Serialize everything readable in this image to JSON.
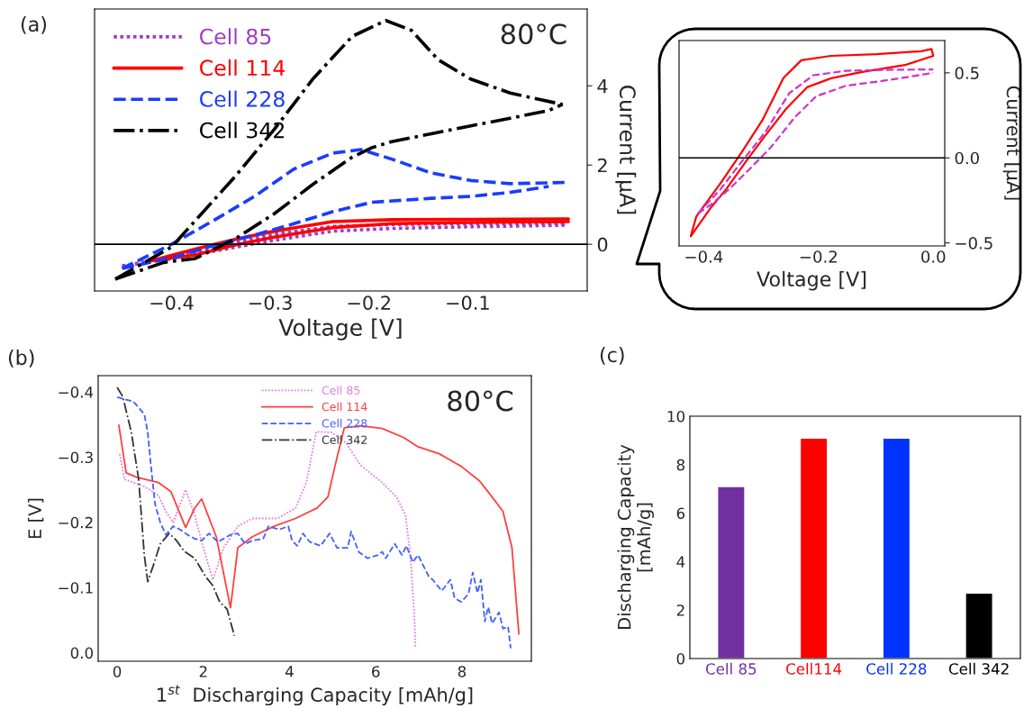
{
  "chart_data": [
    {
      "type": "line",
      "xlabel": "Voltage [V]",
      "ylabel": "Current [μA]",
      "annotations": [
        "(a)",
        "80°C"
      ],
      "xlim": [
        -0.478,
        0.021
      ],
      "xticks": [
        {
          "value": -0.4,
          "label": "−0.4"
        },
        {
          "value": -0.3,
          "label": "−0.3"
        },
        {
          "value": -0.2,
          "label": "−0.2"
        },
        {
          "value": -0.1,
          "label": "−0.1"
        }
      ],
      "ylim": [
        -1.18,
        5.94
      ],
      "yticks": [
        0,
        2,
        4
      ],
      "legend": "top left",
      "grid": false,
      "ref_lines": [
        {
          "axis": "y",
          "value": 0,
          "color": "#000000"
        }
      ],
      "series": [
        {
          "name": "Cell 85",
          "color": "#a03cc8",
          "line_style": "dotted",
          "x": [
            -0.45,
            -0.376,
            -0.336,
            -0.296,
            -0.237,
            -0.177,
            -0.1,
            0.0
          ],
          "values": [
            -0.55,
            -0.2,
            0.05,
            0.25,
            0.45,
            0.5,
            0.52,
            0.53
          ]
        },
        {
          "color": "#a03cc8",
          "line_style": "dotted",
          "x": [
            -0.45,
            -0.396,
            -0.336,
            -0.296,
            -0.237,
            -0.177,
            -0.1,
            0.0
          ],
          "values": [
            -0.55,
            -0.35,
            -0.08,
            0.1,
            0.33,
            0.4,
            0.44,
            0.48
          ]
        },
        {
          "name": "Cell 114",
          "color": "#ff0000",
          "line_style": "solid",
          "x": [
            -0.42,
            -0.376,
            -0.336,
            -0.296,
            -0.237,
            -0.177,
            -0.1,
            0.002
          ],
          "values": [
            -0.41,
            -0.12,
            0.12,
            0.33,
            0.57,
            0.62,
            0.63,
            0.64
          ]
        },
        {
          "color": "#ff0000",
          "line_style": "solid",
          "x": [
            -0.42,
            -0.376,
            -0.336,
            -0.296,
            -0.237,
            -0.177,
            -0.1,
            0.002
          ],
          "values": [
            -0.41,
            -0.27,
            -0.02,
            0.18,
            0.42,
            0.52,
            0.55,
            0.57
          ]
        },
        {
          "name": "Cell 228",
          "color": "#1a3cff",
          "line_style": "dashed",
          "x": [
            -0.45,
            -0.4,
            -0.356,
            -0.316,
            -0.276,
            -0.237,
            -0.208,
            -0.177,
            -0.137,
            -0.097,
            -0.057,
            -0.002
          ],
          "values": [
            -0.61,
            0.0,
            0.62,
            1.21,
            1.9,
            2.3,
            2.39,
            2.15,
            1.8,
            1.61,
            1.53,
            1.56
          ]
        },
        {
          "color": "#1a3cff",
          "line_style": "dashed",
          "x": [
            -0.45,
            -0.396,
            -0.356,
            -0.316,
            -0.276,
            -0.237,
            -0.197,
            -0.137,
            -0.097,
            -0.057,
            -0.018
          ],
          "values": [
            -0.61,
            -0.32,
            -0.02,
            0.23,
            0.52,
            0.82,
            1.06,
            1.16,
            1.21,
            1.31,
            1.46
          ]
        },
        {
          "name": "Cell 342",
          "color": "#000000",
          "line_style": "dashdot",
          "x": [
            -0.457,
            -0.4,
            -0.336,
            -0.296,
            -0.257,
            -0.217,
            -0.183,
            -0.157,
            -0.13,
            -0.097,
            -0.057,
            -0.004
          ],
          "values": [
            -0.88,
            -0.07,
            1.7,
            2.9,
            4.17,
            5.25,
            5.65,
            5.4,
            4.66,
            4.17,
            3.82,
            3.53
          ]
        },
        {
          "color": "#000000",
          "line_style": "dashdot",
          "x": [
            -0.457,
            -0.408,
            -0.376,
            -0.336,
            -0.296,
            -0.257,
            -0.217,
            -0.197,
            -0.177,
            -0.137,
            -0.097,
            -0.057,
            -0.018,
            -0.004
          ],
          "values": [
            -0.88,
            -0.46,
            -0.36,
            0.13,
            0.77,
            1.51,
            2.2,
            2.44,
            2.59,
            2.79,
            2.99,
            3.18,
            3.38,
            3.53
          ]
        }
      ]
    },
    {
      "type": "line",
      "xlabel": "Voltage [V]",
      "ylabel": "Current [μA]",
      "xlim": [
        -0.443,
        0.02
      ],
      "xticks": [
        {
          "value": -0.4,
          "label": "−0.4"
        },
        {
          "value": -0.2,
          "label": "−0.2"
        },
        {
          "value": 0.0,
          "label": "0.0"
        }
      ],
      "ylim": [
        -0.518,
        0.69
      ],
      "yticks": [
        {
          "value": -0.5,
          "label": "−0.5"
        },
        {
          "value": 0.0,
          "label": "0.0"
        },
        {
          "value": 0.5,
          "label": "0.5"
        }
      ],
      "grid": false,
      "ref_lines": [
        {
          "axis": "y",
          "value": 0,
          "color": "#000000"
        }
      ],
      "series": [
        {
          "color": "#ff0000",
          "line_style": "solid",
          "x": [
            -0.4225,
            -0.413,
            -0.371,
            -0.335,
            -0.298,
            -0.261,
            -0.23,
            -0.178,
            -0.099,
            -0.021,
            -0.003,
            0.0
          ],
          "values": [
            -0.46,
            -0.345,
            -0.15,
            0.027,
            0.22,
            0.47,
            0.574,
            0.6,
            0.61,
            0.627,
            0.64,
            0.6
          ]
        },
        {
          "color": "#ff0000",
          "line_style": "solid",
          "x": [
            -0.4225,
            -0.387,
            -0.361,
            -0.324,
            -0.293,
            -0.256,
            -0.22,
            -0.178,
            -0.126,
            -0.047,
            0.0
          ],
          "values": [
            -0.46,
            -0.29,
            -0.185,
            -0.01,
            0.13,
            0.29,
            0.415,
            0.468,
            0.504,
            0.548,
            0.6
          ]
        },
        {
          "color": "#cc33cc",
          "line_style": "dashed",
          "x": [
            -0.41,
            -0.371,
            -0.335,
            -0.293,
            -0.251,
            -0.209,
            -0.152,
            -0.073,
            0.0
          ],
          "values": [
            -0.327,
            -0.185,
            -0.027,
            0.15,
            0.38,
            0.486,
            0.512,
            0.518,
            0.52
          ]
        },
        {
          "color": "#cc33cc",
          "line_style": "dashed",
          "x": [
            -0.41,
            -0.387,
            -0.356,
            -0.319,
            -0.283,
            -0.241,
            -0.204,
            -0.152,
            -0.073,
            0.0
          ],
          "values": [
            -0.327,
            -0.274,
            -0.185,
            -0.062,
            0.062,
            0.24,
            0.362,
            0.424,
            0.46,
            0.5
          ]
        }
      ]
    },
    {
      "type": "line",
      "xlabel": "1$^{st}$  Discharging Capacity [mAh/g]",
      "ylabel": "E [V]",
      "annotations": [
        "(b)",
        "80°C"
      ],
      "xlim": [
        -0.44,
        9.61
      ],
      "xticks": [
        0,
        2,
        4,
        6,
        8
      ],
      "ylim": [
        0.013,
        -0.425
      ],
      "yticks": [
        {
          "value": 0.0,
          "label": "0.0"
        },
        {
          "value": -0.1,
          "label": "−0.1"
        },
        {
          "value": -0.2,
          "label": "−0.2"
        },
        {
          "value": -0.3,
          "label": "−0.3"
        },
        {
          "value": -0.4,
          "label": "−0.4"
        }
      ],
      "legend": "top",
      "grid": false,
      "series": [
        {
          "name": "Cell 85",
          "color": "#e07ee0",
          "line_style": "dotted",
          "x": [
            0.06,
            0.17,
            0.63,
            0.96,
            1.13,
            1.3,
            1.59,
            1.8,
            2.0,
            2.22,
            2.47,
            2.8,
            3.14,
            3.72,
            4.14,
            4.39,
            4.62,
            4.97,
            5.31,
            5.64,
            6.15,
            6.48,
            6.69,
            6.81,
            6.9,
            6.92
          ],
          "values": [
            -0.305,
            -0.266,
            -0.255,
            -0.241,
            -0.217,
            -0.2,
            -0.25,
            -0.211,
            -0.161,
            -0.112,
            -0.161,
            -0.194,
            -0.206,
            -0.206,
            -0.222,
            -0.261,
            -0.339,
            -0.338,
            -0.322,
            -0.288,
            -0.261,
            -0.239,
            -0.211,
            -0.145,
            -0.051,
            -0.009
          ]
        },
        {
          "name": "Cell 114",
          "color": "#ff4040",
          "line_style": "solid",
          "x": [
            0.04,
            0.21,
            0.46,
            0.96,
            1.25,
            1.59,
            1.8,
            1.96,
            2.3,
            2.63,
            2.8,
            3.14,
            3.64,
            4.14,
            4.64,
            4.89,
            5.06,
            5.27,
            5.64,
            6.15,
            6.65,
            6.98,
            7.48,
            7.98,
            8.4,
            8.57,
            8.95,
            9.16,
            9.32
          ],
          "values": [
            -0.349,
            -0.276,
            -0.269,
            -0.261,
            -0.247,
            -0.192,
            -0.222,
            -0.236,
            -0.178,
            -0.069,
            -0.161,
            -0.178,
            -0.194,
            -0.206,
            -0.222,
            -0.239,
            -0.288,
            -0.345,
            -0.348,
            -0.344,
            -0.33,
            -0.316,
            -0.305,
            -0.286,
            -0.264,
            -0.25,
            -0.217,
            -0.161,
            -0.029
          ]
        },
        {
          "name": "Cell 228",
          "color": "#4060ff",
          "line_style": "dashed",
          "x": [
            0.0,
            0.38,
            0.63,
            0.71,
            0.79,
            0.88,
            1.0,
            1.13,
            1.3,
            1.46,
            1.63,
            1.8,
            1.96,
            2.13,
            2.34,
            2.63,
            2.8,
            2.97,
            3.14,
            3.39,
            3.51,
            3.76,
            3.97,
            4.06,
            4.18,
            4.31,
            4.47,
            4.72,
            4.93,
            5.1,
            5.35,
            5.43,
            5.6,
            5.81,
            6.06,
            6.15,
            6.23,
            6.44,
            6.61,
            6.71,
            6.86,
            6.98,
            7.23,
            7.32,
            7.53,
            7.73,
            7.83,
            7.98,
            8.15,
            8.25,
            8.36,
            8.44,
            8.53,
            8.61,
            8.7,
            8.86,
            8.95,
            9.07,
            9.13
          ],
          "values": [
            -0.392,
            -0.385,
            -0.366,
            -0.338,
            -0.283,
            -0.228,
            -0.2,
            -0.181,
            -0.194,
            -0.189,
            -0.181,
            -0.175,
            -0.172,
            -0.183,
            -0.17,
            -0.181,
            -0.183,
            -0.167,
            -0.172,
            -0.175,
            -0.194,
            -0.189,
            -0.194,
            -0.172,
            -0.164,
            -0.183,
            -0.17,
            -0.164,
            -0.183,
            -0.161,
            -0.161,
            -0.186,
            -0.155,
            -0.145,
            -0.15,
            -0.155,
            -0.145,
            -0.167,
            -0.15,
            -0.164,
            -0.139,
            -0.15,
            -0.117,
            -0.112,
            -0.095,
            -0.112,
            -0.084,
            -0.078,
            -0.09,
            -0.123,
            -0.092,
            -0.112,
            -0.048,
            -0.07,
            -0.045,
            -0.062,
            -0.037,
            -0.04,
            -0.007
          ]
        },
        {
          "name": "Cell 342",
          "color": "#333333",
          "line_style": "dashdot",
          "x": [
            0.0,
            0.13,
            0.33,
            0.5,
            0.63,
            0.71,
            0.84,
            1.0,
            1.21,
            1.38,
            1.55,
            1.8,
            2.05,
            2.22,
            2.38,
            2.55,
            2.72
          ],
          "values": [
            -0.407,
            -0.393,
            -0.338,
            -0.266,
            -0.15,
            -0.109,
            -0.134,
            -0.167,
            -0.183,
            -0.172,
            -0.156,
            -0.145,
            -0.117,
            -0.103,
            -0.078,
            -0.067,
            -0.026
          ]
        }
      ]
    },
    {
      "type": "bar",
      "ylabel": "Discharging Capacity\n[mAh/g]",
      "annotations": [
        "(c)"
      ],
      "categories": [
        "Cell 85",
        "Cell114",
        "Cell 228",
        "Cell 342"
      ],
      "values": [
        7.1,
        9.1,
        9.1,
        2.7
      ],
      "colors": [
        "#7030a0",
        "#ff0000",
        "#0033ff",
        "#000000"
      ],
      "ylim": [
        0,
        10
      ],
      "yticks": [
        0,
        2,
        4,
        6,
        8,
        10
      ],
      "grid": false
    }
  ]
}
